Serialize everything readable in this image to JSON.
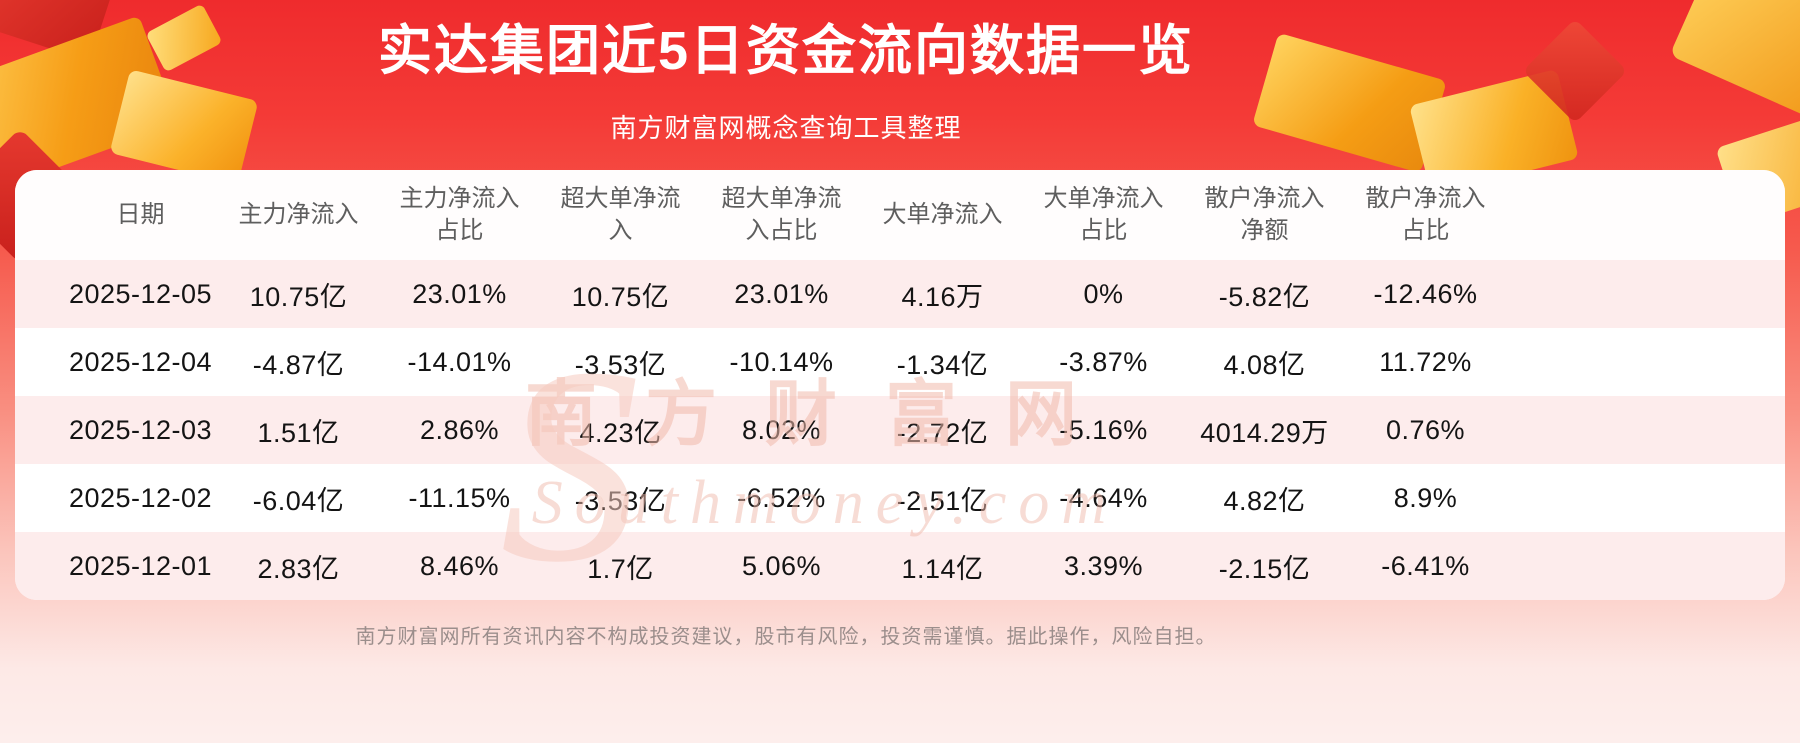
{
  "header": {
    "title": "实达集团近5日资金流向数据一览",
    "subtitle": "南方财富网概念查询工具整理"
  },
  "chart_data": {
    "type": "table",
    "title": "实达集团近5日资金流向数据一览",
    "columns": [
      "日期",
      "主力净流入",
      "主力净流入占比",
      "超大单净流入",
      "超大单净流入占比",
      "大单净流入",
      "大单净流入占比",
      "散户净流入净额",
      "散户净流入占比"
    ],
    "rows": [
      [
        "2025-12-05",
        "10.75亿",
        "23.01%",
        "10.75亿",
        "23.01%",
        "4.16万",
        "0%",
        "-5.82亿",
        "-12.46%"
      ],
      [
        "2025-12-04",
        "-4.87亿",
        "-14.01%",
        "-3.53亿",
        "-10.14%",
        "-1.34亿",
        "-3.87%",
        "4.08亿",
        "11.72%"
      ],
      [
        "2025-12-03",
        "1.51亿",
        "2.86%",
        "4.23亿",
        "8.02%",
        "-2.72亿",
        "-5.16%",
        "4014.29万",
        "0.76%"
      ],
      [
        "2025-12-02",
        "-6.04亿",
        "-11.15%",
        "-3.53亿",
        "-6.52%",
        "-2.51亿",
        "-4.64%",
        "4.82亿",
        "8.9%"
      ],
      [
        "2025-12-01",
        "2.83亿",
        "8.46%",
        "1.7亿",
        "5.06%",
        "1.14亿",
        "3.39%",
        "-2.15亿",
        "-6.41%"
      ]
    ],
    "layout": {
      "stripe_rows": [
        1,
        3,
        5
      ],
      "legend": "none",
      "grid": "off"
    }
  },
  "watermark": {
    "initial": "S",
    "cn": "南方财富网",
    "en": "Southmoney.com"
  },
  "footer": {
    "disclaimer": "南方财富网所有资讯内容不构成投资建议，股市有风险，投资需谨慎。据此操作，风险自担。"
  },
  "colors": {
    "background_red": "#f1302e",
    "background_pink": "#fdeeec",
    "accent_gold": "#f9a21b",
    "accent_gold_light": "#ffd34d",
    "stripe_pink": "#fdecec",
    "title_text": "#ffffff",
    "header_text": "#5e5e5e",
    "cell_text": "#141414",
    "footer_text": "#9b8e8c",
    "watermark_tint": "#f0b9ac"
  }
}
